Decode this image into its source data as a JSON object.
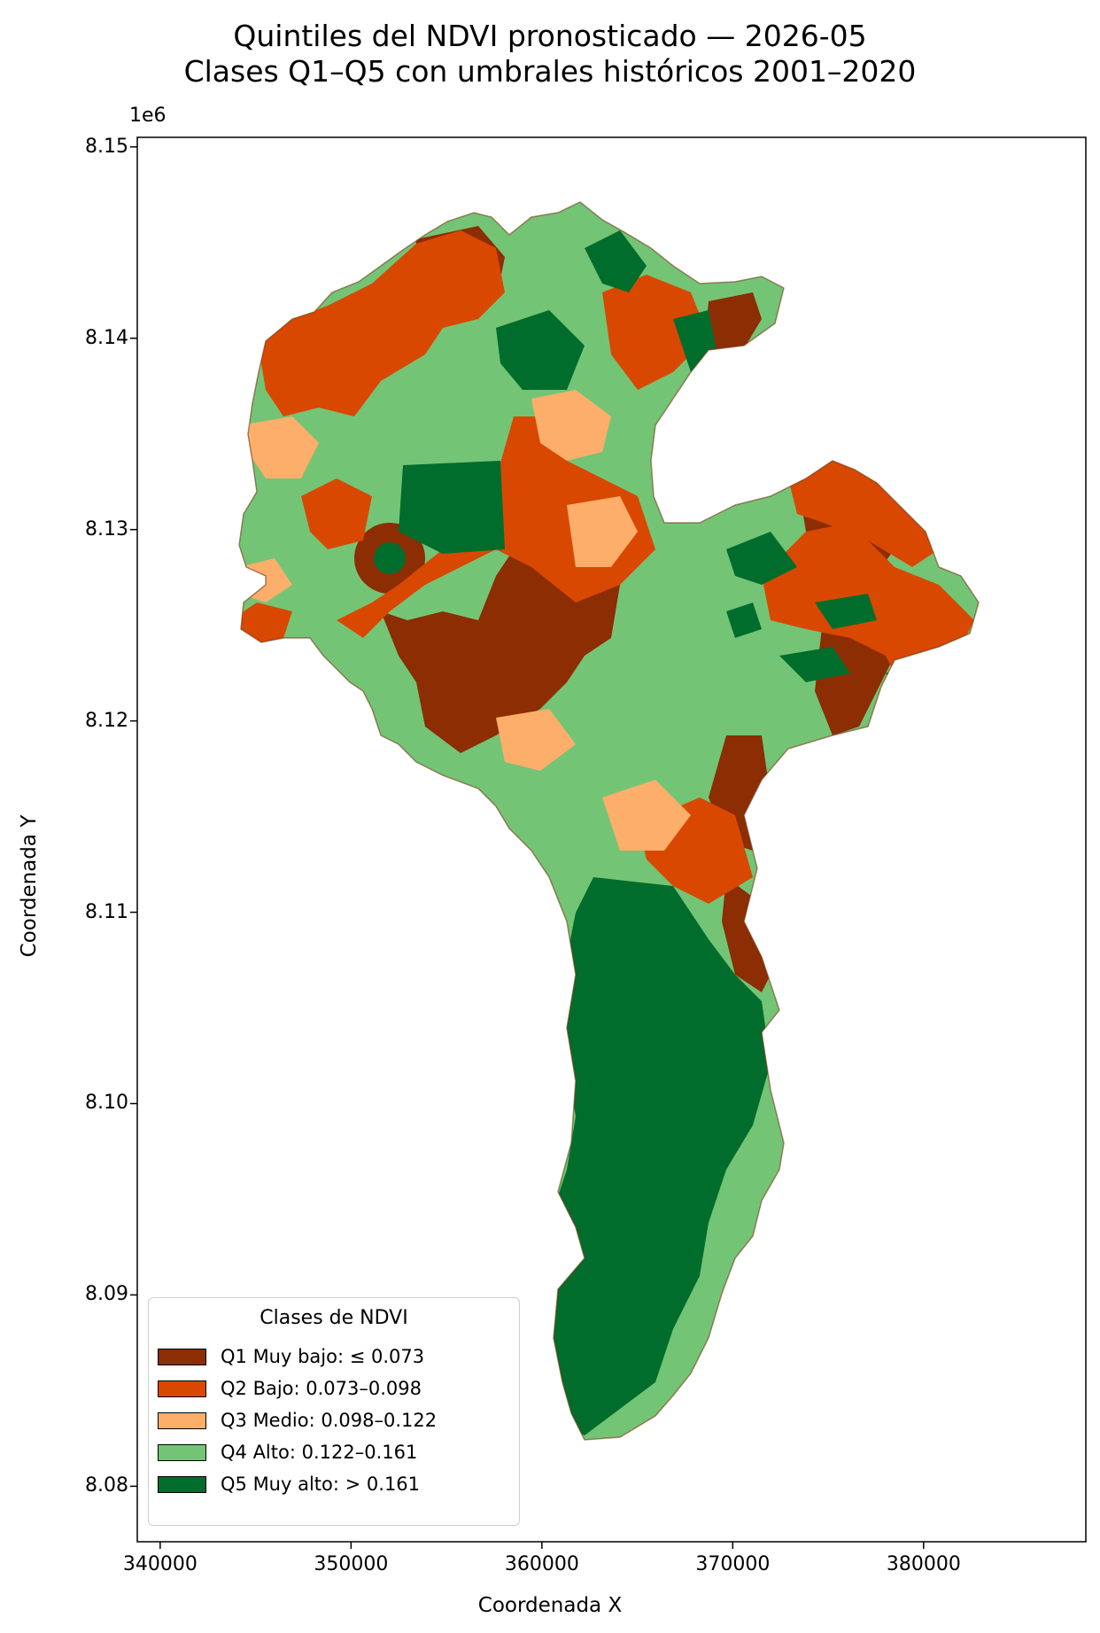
{
  "chart_data": {
    "type": "map",
    "title": "Quintiles del NDVI pronosticado — 2026-05",
    "subtitle": "Clases Q1–Q5 con umbrales históricos 2001–2020",
    "xlabel": "Coordenada X",
    "ylabel": "Coordenada Y",
    "y_offset_label": "1e6",
    "xlim": [
      338800,
      388500
    ],
    "ylim": [
      8.0771,
      8.1505
    ],
    "x_ticks": [
      {
        "value": 340000,
        "label": "340000"
      },
      {
        "value": 350000,
        "label": "350000"
      },
      {
        "value": 360000,
        "label": "360000"
      },
      {
        "value": 370000,
        "label": "370000"
      },
      {
        "value": 380000,
        "label": "380000"
      }
    ],
    "y_ticks": [
      {
        "value": 8.08,
        "label": "8.08"
      },
      {
        "value": 8.09,
        "label": "8.09"
      },
      {
        "value": 8.1,
        "label": "8.10"
      },
      {
        "value": 8.11,
        "label": "8.11"
      },
      {
        "value": 8.12,
        "label": "8.12"
      },
      {
        "value": 8.13,
        "label": "8.13"
      },
      {
        "value": 8.14,
        "label": "8.14"
      },
      {
        "value": 8.15,
        "label": "8.15"
      }
    ],
    "legend": {
      "title": "Clases de NDVI",
      "position": "lower-left",
      "items": [
        {
          "label": "Q1 Muy bajo: ≤ 0.073",
          "color": "#8c2d04"
        },
        {
          "label": "Q2 Bajo: 0.073–0.098",
          "color": "#d94801"
        },
        {
          "label": "Q3 Medio: 0.098–0.122",
          "color": "#fdae6b"
        },
        {
          "label": "Q4 Alto: 0.122–0.161",
          "color": "#74c476"
        },
        {
          "label": "Q5 Muy alto: > 0.161",
          "color": "#006d2c"
        }
      ]
    },
    "grid": false
  }
}
